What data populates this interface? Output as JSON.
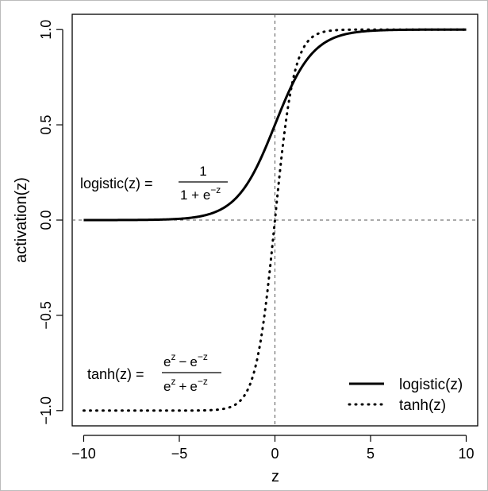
{
  "chart_data": {
    "type": "line",
    "title": "",
    "xlabel": "z",
    "ylabel": "activation(z)",
    "xlim": [
      -10.6,
      10.6
    ],
    "ylim": [
      -1.08,
      1.08
    ],
    "x_ticks": [
      -10,
      -5,
      0,
      5,
      10
    ],
    "x_tick_labels": [
      "−10",
      "−5",
      "0",
      "5",
      "10"
    ],
    "y_ticks": [
      -1.0,
      -0.5,
      0.0,
      0.5,
      1.0
    ],
    "y_tick_labels": [
      "−1.0",
      "−0.5",
      "0.0",
      "0.5",
      "1.0"
    ],
    "reference_lines": {
      "x": 0,
      "y": 0,
      "style": "dashed"
    },
    "grid": false,
    "legend_position": "bottom-right",
    "series": [
      {
        "name": "logistic(z)",
        "function": "logistic",
        "line_style": "solid",
        "x_range": [
          -10,
          10
        ]
      },
      {
        "name": "tanh(z)",
        "function": "tanh",
        "line_style": "dotted",
        "x_range": [
          -10,
          10
        ]
      }
    ],
    "annotations": {
      "logistic": {
        "lhs": "logistic(z) =",
        "numerator": "1",
        "denominator_base": "1 + e",
        "denominator_exp": "−z"
      },
      "tanh": {
        "lhs": "tanh(z) =",
        "numerator_a": "e",
        "numerator_a_exp": "z",
        "numerator_op": "−",
        "numerator_b": "e",
        "numerator_b_exp": "−z",
        "denominator_a": "e",
        "denominator_a_exp": "z",
        "denominator_op": "+",
        "denominator_b": "e",
        "denominator_b_exp": "−z"
      }
    }
  }
}
